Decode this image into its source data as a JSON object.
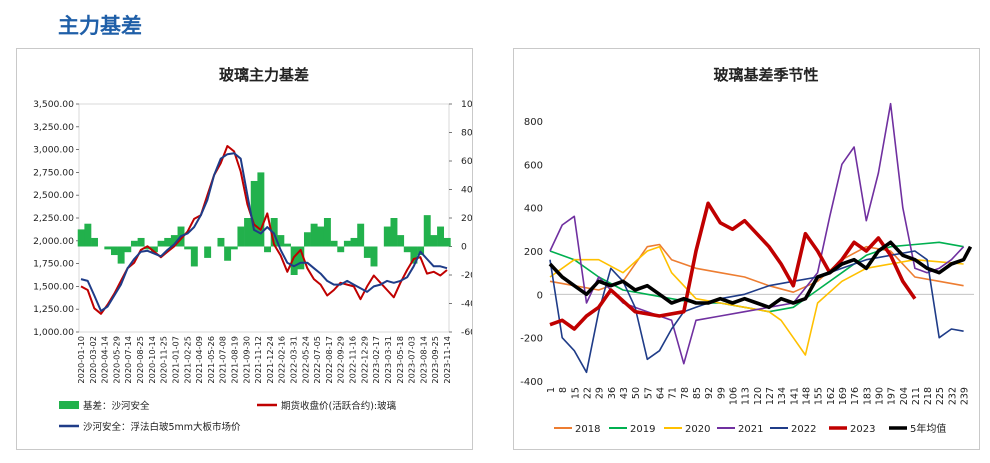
{
  "section": {
    "title": "主力基差"
  },
  "chart_data": [
    {
      "type": "line",
      "title": "玻璃主力基差",
      "x_ticks": [
        "2020-01-10",
        "2020-03-02",
        "2020-04-14",
        "2020-05-29",
        "2020-07-14",
        "2020-08-25",
        "2020-10-14",
        "2020-11-25",
        "2021-01-07",
        "2021-02-25",
        "2021-04-09",
        "2021-05-26",
        "2021-07-08",
        "2021-08-19",
        "2021-09-30",
        "2021-11-12",
        "2021-12-24",
        "2022-02-16",
        "2022-03-31",
        "2022-05-24",
        "2022-07-05",
        "2022-08-17",
        "2022-09-29",
        "2022-11-16",
        "2022-12-29",
        "2023-02-17",
        "2023-03-31",
        "2023-05-18",
        "2023-07-03",
        "2023-08-14",
        "2023-09-25",
        "2023-11-14"
      ],
      "y_left_ticks": [
        "3,500.00",
        "3,250.00",
        "3,000.00",
        "2,750.00",
        "2,500.00",
        "2,250.00",
        "2,000.00",
        "1,750.00",
        "1,500.00",
        "1,250.00",
        "1,000.00"
      ],
      "y_right_ticks": [
        "1000",
        "800",
        "600",
        "400",
        "200",
        "0",
        "-200",
        "-400",
        "-600"
      ],
      "ylim_left": [
        1000,
        3500
      ],
      "ylim_right": [
        -600,
        1000
      ],
      "legend": [
        "基差：沙河安全",
        "期货收盘价(活跃合约):玻璃",
        "沙河安全：浮法白玻5mm大板市场价"
      ],
      "legend_position": "bottom",
      "colors": {
        "basis": "#22b14c",
        "futures": "#c00000",
        "spot": "#1f3c88"
      },
      "series": [
        {
          "name": "期货收盘价(活跃合约):玻璃",
          "axis": "left",
          "values": [
            1500,
            1460,
            1260,
            1200,
            1300,
            1420,
            1560,
            1700,
            1760,
            1900,
            1940,
            1880,
            1820,
            1880,
            1940,
            2020,
            2100,
            2240,
            2280,
            2500,
            2720,
            2850,
            3040,
            2980,
            2760,
            2400,
            2180,
            2120,
            2300,
            1960,
            1840,
            1660,
            1820,
            1900,
            1700,
            1580,
            1520,
            1400,
            1460,
            1540,
            1520,
            1500,
            1360,
            1500,
            1620,
            1540,
            1460,
            1380,
            1540,
            1680,
            1800,
            1820,
            1640,
            1660,
            1620,
            1680
          ]
        },
        {
          "name": "沙河安全：浮法白玻5mm大板市场价",
          "axis": "left",
          "values": [
            1580,
            1560,
            1400,
            1230,
            1280,
            1400,
            1520,
            1700,
            1800,
            1880,
            1890,
            1860,
            1830,
            1900,
            1960,
            2050,
            2080,
            2150,
            2280,
            2450,
            2720,
            2900,
            2950,
            2960,
            2900,
            2500,
            2120,
            2080,
            2150,
            2080,
            1900,
            1760,
            1720,
            1760,
            1760,
            1700,
            1640,
            1560,
            1520,
            1520,
            1560,
            1520,
            1480,
            1440,
            1500,
            1520,
            1560,
            1540,
            1560,
            1600,
            1720,
            1880,
            1800,
            1720,
            1720,
            1700
          ]
        },
        {
          "name": "基差：沙河安全",
          "axis": "right",
          "values": [
            120,
            160,
            60,
            0,
            -20,
            -60,
            -120,
            -40,
            40,
            60,
            -20,
            -40,
            40,
            60,
            80,
            140,
            -20,
            -140,
            0,
            -80,
            0,
            60,
            -100,
            -20,
            140,
            200,
            460,
            520,
            -40,
            200,
            80,
            20,
            -200,
            -160,
            100,
            160,
            140,
            200,
            40,
            -40,
            40,
            60,
            160,
            -80,
            -140,
            0,
            140,
            200,
            80,
            -40,
            -120,
            -60,
            220,
            80,
            140,
            60
          ]
        }
      ]
    },
    {
      "type": "line",
      "title": "玻璃基差季节性",
      "x_ticks": [
        "1",
        "8",
        "15",
        "22",
        "29",
        "36",
        "43",
        "50",
        "57",
        "64",
        "71",
        "78",
        "85",
        "92",
        "99",
        "106",
        "113",
        "120",
        "127",
        "134",
        "141",
        "148",
        "155",
        "162",
        "169",
        "176",
        "183",
        "190",
        "197",
        "204",
        "211",
        "218",
        "225",
        "232",
        "239"
      ],
      "y_ticks": [
        "800",
        "600",
        "400",
        "200",
        "0",
        "-200",
        "-400"
      ],
      "ylim": [
        -400,
        800
      ],
      "xlim": [
        1,
        245
      ],
      "legend": [
        "2018",
        "2019",
        "2020",
        "2021",
        "2022",
        "2023",
        "5年均值"
      ],
      "legend_position": "bottom",
      "colors": {
        "2018": "#ed7d31",
        "2019": "#00b050",
        "2020": "#ffc000",
        "2021": "#7030a0",
        "2022": "#1f3c88",
        "2023": "#c00000",
        "5年均值": "#000000"
      },
      "series": [
        {
          "name": "2018",
          "x": [
            1,
            15,
            29,
            43,
            57,
            64,
            71,
            85,
            99,
            113,
            127,
            141,
            155,
            169,
            183,
            197,
            211,
            225,
            239
          ],
          "values": [
            60,
            40,
            20,
            60,
            220,
            230,
            160,
            120,
            100,
            80,
            40,
            10,
            60,
            160,
            220,
            200,
            80,
            60,
            40
          ]
        },
        {
          "name": "2019",
          "x": [
            1,
            15,
            29,
            43,
            57,
            71,
            85,
            99,
            113,
            127,
            141,
            155,
            169,
            183,
            197,
            211,
            225,
            239
          ],
          "values": [
            200,
            160,
            80,
            20,
            0,
            -20,
            -40,
            -40,
            -60,
            -80,
            -60,
            20,
            100,
            180,
            220,
            230,
            240,
            220
          ]
        },
        {
          "name": "2020",
          "x": [
            1,
            15,
            29,
            43,
            57,
            64,
            71,
            85,
            99,
            113,
            127,
            134,
            141,
            148,
            155,
            169,
            183,
            197,
            211,
            225,
            239
          ],
          "values": [
            80,
            160,
            160,
            100,
            200,
            220,
            100,
            -20,
            -40,
            -60,
            -80,
            -120,
            -200,
            -280,
            -40,
            60,
            120,
            140,
            160,
            150,
            140
          ]
        },
        {
          "name": "2021",
          "x": [
            1,
            8,
            15,
            22,
            29,
            43,
            57,
            71,
            78,
            85,
            99,
            113,
            127,
            141,
            155,
            162,
            169,
            176,
            183,
            190,
            197,
            204,
            211,
            218,
            225,
            232,
            239
          ],
          "values": [
            200,
            320,
            360,
            -40,
            80,
            -40,
            -80,
            -120,
            -320,
            -120,
            -100,
            -80,
            -60,
            -40,
            100,
            360,
            600,
            680,
            340,
            560,
            880,
            400,
            120,
            100,
            120,
            160,
            220
          ]
        },
        {
          "name": "2022",
          "x": [
            1,
            8,
            15,
            22,
            29,
            36,
            43,
            50,
            57,
            64,
            71,
            78,
            85,
            99,
            113,
            127,
            141,
            155,
            169,
            183,
            197,
            211,
            218,
            225,
            232,
            239
          ],
          "values": [
            160,
            -200,
            -260,
            -360,
            -80,
            120,
            60,
            -60,
            -300,
            -260,
            -160,
            -80,
            -60,
            -20,
            0,
            40,
            60,
            80,
            120,
            160,
            180,
            200,
            160,
            -200,
            -160,
            -170
          ]
        },
        {
          "name": "2023",
          "x": [
            1,
            8,
            15,
            22,
            29,
            36,
            50,
            64,
            78,
            85,
            92,
            99,
            106,
            113,
            120,
            127,
            134,
            141,
            148,
            155,
            162,
            169,
            176,
            183,
            190,
            197,
            204,
            211
          ],
          "values": [
            -140,
            -120,
            -160,
            -100,
            -60,
            20,
            -80,
            -100,
            -80,
            200,
            420,
            330,
            300,
            340,
            280,
            220,
            140,
            40,
            280,
            200,
            100,
            160,
            240,
            200,
            260,
            180,
            60,
            -20
          ]
        },
        {
          "name": "5年均值",
          "x": [
            1,
            8,
            15,
            22,
            29,
            36,
            43,
            50,
            57,
            64,
            71,
            78,
            85,
            92,
            99,
            106,
            113,
            120,
            127,
            134,
            141,
            148,
            155,
            162,
            169,
            176,
            183,
            190,
            197,
            204,
            211,
            218,
            225,
            232,
            239,
            243
          ],
          "values": [
            140,
            80,
            40,
            0,
            60,
            40,
            60,
            20,
            40,
            0,
            -40,
            -20,
            -40,
            -40,
            -20,
            -40,
            -20,
            -40,
            -60,
            -20,
            -40,
            -20,
            80,
            100,
            140,
            160,
            120,
            200,
            240,
            180,
            160,
            120,
            100,
            140,
            160,
            220
          ]
        }
      ]
    }
  ]
}
